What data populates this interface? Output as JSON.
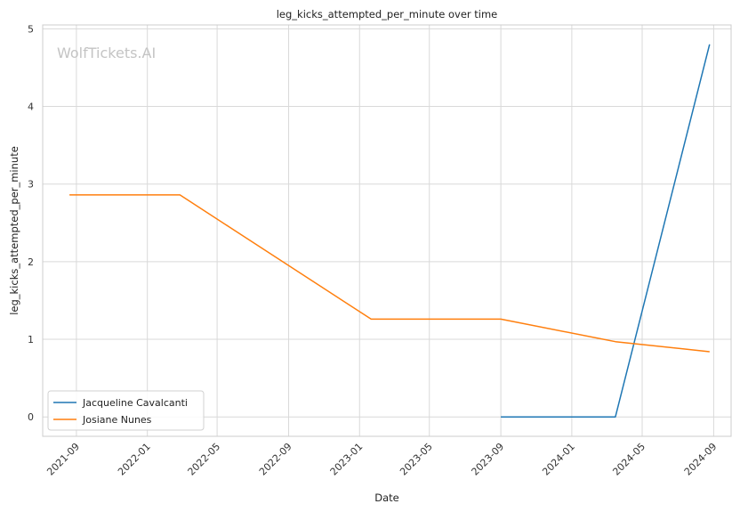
{
  "chart_data": {
    "type": "line",
    "title": "leg_kicks_attempted_per_minute over time",
    "xlabel": "Date",
    "ylabel": "leg_kicks_attempted_per_minute",
    "watermark": "WolfTickets.AI",
    "x_ticks": [
      "2021-09",
      "2022-01",
      "2022-05",
      "2022-09",
      "2023-01",
      "2023-05",
      "2023-09",
      "2024-01",
      "2024-05",
      "2024-09"
    ],
    "y_ticks": [
      "0",
      "1",
      "2",
      "3",
      "4",
      "5"
    ],
    "ylim": [
      -0.25,
      5.05
    ],
    "xlim": [
      "2021-07-05",
      "2024-10-01"
    ],
    "grid": true,
    "legend_position": "lower-left",
    "series": [
      {
        "name": "Jacqueline Cavalcanti",
        "color": "#1f77b4",
        "points": [
          {
            "x": "2023-09-01",
            "y": 0.0
          },
          {
            "x": "2024-03-16",
            "y": 0.0
          },
          {
            "x": "2024-08-25",
            "y": 4.8
          }
        ]
      },
      {
        "name": "Josiane Nunes",
        "color": "#ff7f0e",
        "points": [
          {
            "x": "2021-08-20",
            "y": 2.86
          },
          {
            "x": "2022-02-26",
            "y": 2.86
          },
          {
            "x": "2023-01-21",
            "y": 1.26
          },
          {
            "x": "2023-09-01",
            "y": 1.26
          },
          {
            "x": "2024-03-16",
            "y": 0.97
          },
          {
            "x": "2024-08-25",
            "y": 0.84
          }
        ]
      }
    ]
  }
}
